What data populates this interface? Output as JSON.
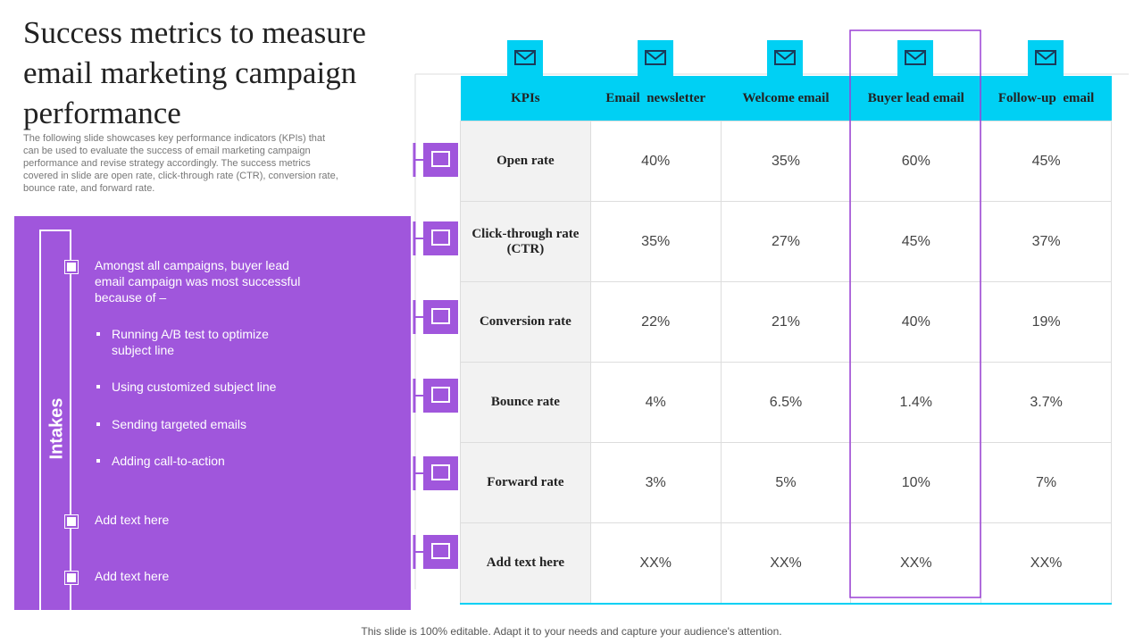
{
  "header": {
    "title": "Success metrics to measure email marketing campaign performance",
    "description": "The following slide showcases key performance indicators (KPIs) that can be used to evaluate the success of email marketing campaign performance and revise strategy accordingly. The success metrics covered in slide are open rate, click-through rate (CTR), conversion rate, bounce rate, and forward rate."
  },
  "panel": {
    "label": "Intakes",
    "items": [
      {
        "text": "Amongst all campaigns, buyer lead email campaign was most successful because of  –",
        "bullets": [
          "Running A/B test to optimize subject line",
          "Using customized subject line",
          "Sending targeted emails",
          "Adding call-to-action"
        ]
      },
      {
        "text": "Add text here"
      },
      {
        "text": "Add text here"
      }
    ]
  },
  "table": {
    "header": [
      "KPIs",
      "Email  newsletter",
      "Welcome email",
      "Buyer lead email",
      "Follow-up  email"
    ],
    "rows": [
      [
        "Open rate",
        "40%",
        "35%",
        "60%",
        "45%"
      ],
      [
        "Click-through rate (CTR)",
        "35%",
        "27%",
        "45%",
        "37%"
      ],
      [
        "Conversion rate",
        "22%",
        "21%",
        "40%",
        "19%"
      ],
      [
        "Bounce rate",
        "4%",
        "6.5%",
        "1.4%",
        "3.7%"
      ],
      [
        "Forward  rate",
        "3%",
        "5%",
        "10%",
        "7%"
      ],
      [
        "Add text here",
        "XX%",
        "XX%",
        "XX%",
        "XX%"
      ]
    ]
  },
  "footer": "This slide is 100% editable. Adapt it to your needs and capture your audience's attention."
}
